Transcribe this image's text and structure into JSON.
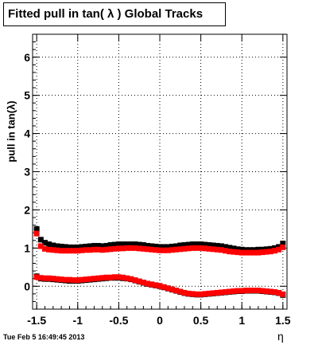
{
  "header": {
    "title": "Fitted pull in tan( λ )  Global Tracks"
  },
  "footer": {
    "timestamp": "Tue Feb  5 16:49:45 2013"
  },
  "chart_data": {
    "type": "scatter",
    "title": "Fitted pull in tan( λ )  Global Tracks",
    "xlabel": "η",
    "ylabel": "pull in tan(λ)",
    "xlim": [
      -1.55,
      1.55
    ],
    "ylim": [
      -0.6,
      6.6
    ],
    "grid": true,
    "x_ticks": [
      "-1.5",
      "-1",
      "-0.5",
      "0",
      "0.5",
      "1",
      "1.5"
    ],
    "y_ticks": [
      "0",
      "1",
      "2",
      "3",
      "4",
      "5",
      "6"
    ],
    "colors": {
      "black_series": "#000000",
      "red_series": "#ff0000"
    },
    "series": [
      {
        "marker": "square",
        "color": "#000000",
        "x": [
          -1.5,
          -1.45,
          -1.4,
          -1.35,
          -1.3,
          -1.25,
          -1.2,
          -1.15,
          -1.1,
          -1.05,
          -1.0,
          -0.95,
          -0.9,
          -0.85,
          -0.8,
          -0.75,
          -0.7,
          -0.65,
          -0.6,
          -0.55,
          -0.5,
          -0.45,
          -0.4,
          -0.35,
          -0.3,
          -0.25,
          -0.2,
          -0.15,
          -0.1,
          -0.05,
          0.0,
          0.05,
          0.1,
          0.15,
          0.2,
          0.25,
          0.3,
          0.35,
          0.4,
          0.45,
          0.5,
          0.55,
          0.6,
          0.65,
          0.7,
          0.75,
          0.8,
          0.85,
          0.9,
          0.95,
          1.0,
          1.05,
          1.1,
          1.15,
          1.2,
          1.25,
          1.3,
          1.35,
          1.4,
          1.45,
          1.5
        ],
        "y": [
          1.5,
          1.22,
          1.14,
          1.1,
          1.07,
          1.05,
          1.04,
          1.03,
          1.02,
          1.02,
          1.02,
          1.03,
          1.04,
          1.05,
          1.06,
          1.06,
          1.05,
          1.06,
          1.08,
          1.09,
          1.1,
          1.1,
          1.1,
          1.1,
          1.1,
          1.09,
          1.08,
          1.06,
          1.05,
          1.04,
          1.03,
          1.03,
          1.03,
          1.04,
          1.05,
          1.07,
          1.08,
          1.09,
          1.1,
          1.1,
          1.1,
          1.09,
          1.08,
          1.07,
          1.06,
          1.05,
          1.03,
          1.01,
          0.99,
          0.97,
          0.96,
          0.95,
          0.95,
          0.95,
          0.96,
          0.96,
          0.97,
          0.98,
          1.0,
          1.03,
          1.12
        ]
      },
      {
        "marker": "square",
        "color": "#ff0000",
        "x": [
          -1.5,
          -1.45,
          -1.4,
          -1.35,
          -1.3,
          -1.25,
          -1.2,
          -1.15,
          -1.1,
          -1.05,
          -1.0,
          -0.95,
          -0.9,
          -0.85,
          -0.8,
          -0.75,
          -0.7,
          -0.65,
          -0.6,
          -0.55,
          -0.5,
          -0.45,
          -0.4,
          -0.35,
          -0.3,
          -0.25,
          -0.2,
          -0.15,
          -0.1,
          -0.05,
          0.0,
          0.05,
          0.1,
          0.15,
          0.2,
          0.25,
          0.3,
          0.35,
          0.4,
          0.45,
          0.5,
          0.55,
          0.6,
          0.65,
          0.7,
          0.75,
          0.8,
          0.85,
          0.9,
          0.95,
          1.0,
          1.05,
          1.1,
          1.15,
          1.2,
          1.25,
          1.3,
          1.35,
          1.4,
          1.45,
          1.5
        ],
        "y": [
          1.38,
          1.05,
          0.98,
          0.96,
          0.95,
          0.94,
          0.93,
          0.93,
          0.93,
          0.93,
          0.93,
          0.94,
          0.95,
          0.95,
          0.96,
          0.96,
          0.95,
          0.96,
          0.97,
          0.98,
          0.99,
          0.99,
          1.0,
          1.0,
          1.0,
          0.99,
          0.98,
          0.97,
          0.96,
          0.95,
          0.94,
          0.94,
          0.94,
          0.95,
          0.96,
          0.97,
          0.98,
          0.99,
          1.0,
          1.0,
          1.0,
          0.99,
          0.98,
          0.97,
          0.96,
          0.95,
          0.93,
          0.91,
          0.9,
          0.89,
          0.88,
          0.88,
          0.88,
          0.88,
          0.88,
          0.89,
          0.9,
          0.91,
          0.93,
          0.96,
          1.02
        ]
      },
      {
        "marker": "square",
        "color": "#000000",
        "x": [
          -1.5,
          -1.45,
          -1.4,
          -1.35,
          -1.3,
          -1.25,
          -1.2,
          -1.15,
          -1.1,
          -1.05,
          -1.0,
          -0.95,
          -0.9,
          -0.85,
          -0.8,
          -0.75,
          -0.7,
          -0.65,
          -0.6,
          -0.55,
          -0.5,
          -0.45,
          -0.4,
          -0.35,
          -0.3,
          -0.25,
          -0.2,
          -0.15,
          -0.1,
          -0.05,
          0.0,
          0.05,
          0.1,
          0.15,
          0.2,
          0.25,
          0.3,
          0.35,
          0.4,
          0.45,
          0.5,
          0.55,
          0.6,
          0.65,
          0.7,
          0.75,
          0.8,
          0.85,
          0.9,
          0.95,
          1.0,
          1.05,
          1.1,
          1.15,
          1.2,
          1.25,
          1.3,
          1.35,
          1.4,
          1.45,
          1.5
        ],
        "y": [
          0.26,
          0.2,
          0.19,
          0.19,
          0.18,
          0.17,
          0.16,
          0.15,
          0.14,
          0.14,
          0.14,
          0.15,
          0.16,
          0.17,
          0.18,
          0.19,
          0.2,
          0.21,
          0.22,
          0.22,
          0.22,
          0.21,
          0.2,
          0.18,
          0.15,
          0.12,
          0.09,
          0.06,
          0.04,
          0.02,
          0.0,
          -0.03,
          -0.06,
          -0.09,
          -0.12,
          -0.15,
          -0.18,
          -0.2,
          -0.21,
          -0.22,
          -0.22,
          -0.21,
          -0.2,
          -0.19,
          -0.18,
          -0.17,
          -0.16,
          -0.15,
          -0.14,
          -0.13,
          -0.13,
          -0.12,
          -0.12,
          -0.12,
          -0.12,
          -0.13,
          -0.14,
          -0.15,
          -0.16,
          -0.18,
          -0.23
        ]
      },
      {
        "marker": "square",
        "color": "#ff0000",
        "x": [
          -1.5,
          -1.45,
          -1.4,
          -1.35,
          -1.3,
          -1.25,
          -1.2,
          -1.15,
          -1.1,
          -1.05,
          -1.0,
          -0.95,
          -0.9,
          -0.85,
          -0.8,
          -0.75,
          -0.7,
          -0.65,
          -0.6,
          -0.55,
          -0.5,
          -0.45,
          -0.4,
          -0.35,
          -0.3,
          -0.25,
          -0.2,
          -0.15,
          -0.1,
          -0.05,
          0.0,
          0.05,
          0.1,
          0.15,
          0.2,
          0.25,
          0.3,
          0.35,
          0.4,
          0.45,
          0.5,
          0.55,
          0.6,
          0.65,
          0.7,
          0.75,
          0.8,
          0.85,
          0.9,
          0.95,
          1.0,
          1.05,
          1.1,
          1.15,
          1.2,
          1.25,
          1.3,
          1.35,
          1.4,
          1.45,
          1.5
        ],
        "y": [
          0.24,
          0.22,
          0.21,
          0.21,
          0.2,
          0.19,
          0.18,
          0.17,
          0.17,
          0.16,
          0.16,
          0.17,
          0.18,
          0.19,
          0.2,
          0.21,
          0.22,
          0.23,
          0.23,
          0.24,
          0.24,
          0.23,
          0.21,
          0.19,
          0.16,
          0.13,
          0.1,
          0.07,
          0.05,
          0.03,
          0.01,
          -0.02,
          -0.05,
          -0.08,
          -0.11,
          -0.14,
          -0.17,
          -0.19,
          -0.2,
          -0.21,
          -0.21,
          -0.2,
          -0.19,
          -0.18,
          -0.17,
          -0.16,
          -0.15,
          -0.14,
          -0.13,
          -0.12,
          -0.12,
          -0.11,
          -0.11,
          -0.11,
          -0.11,
          -0.12,
          -0.13,
          -0.14,
          -0.15,
          -0.17,
          -0.21
        ]
      }
    ]
  }
}
